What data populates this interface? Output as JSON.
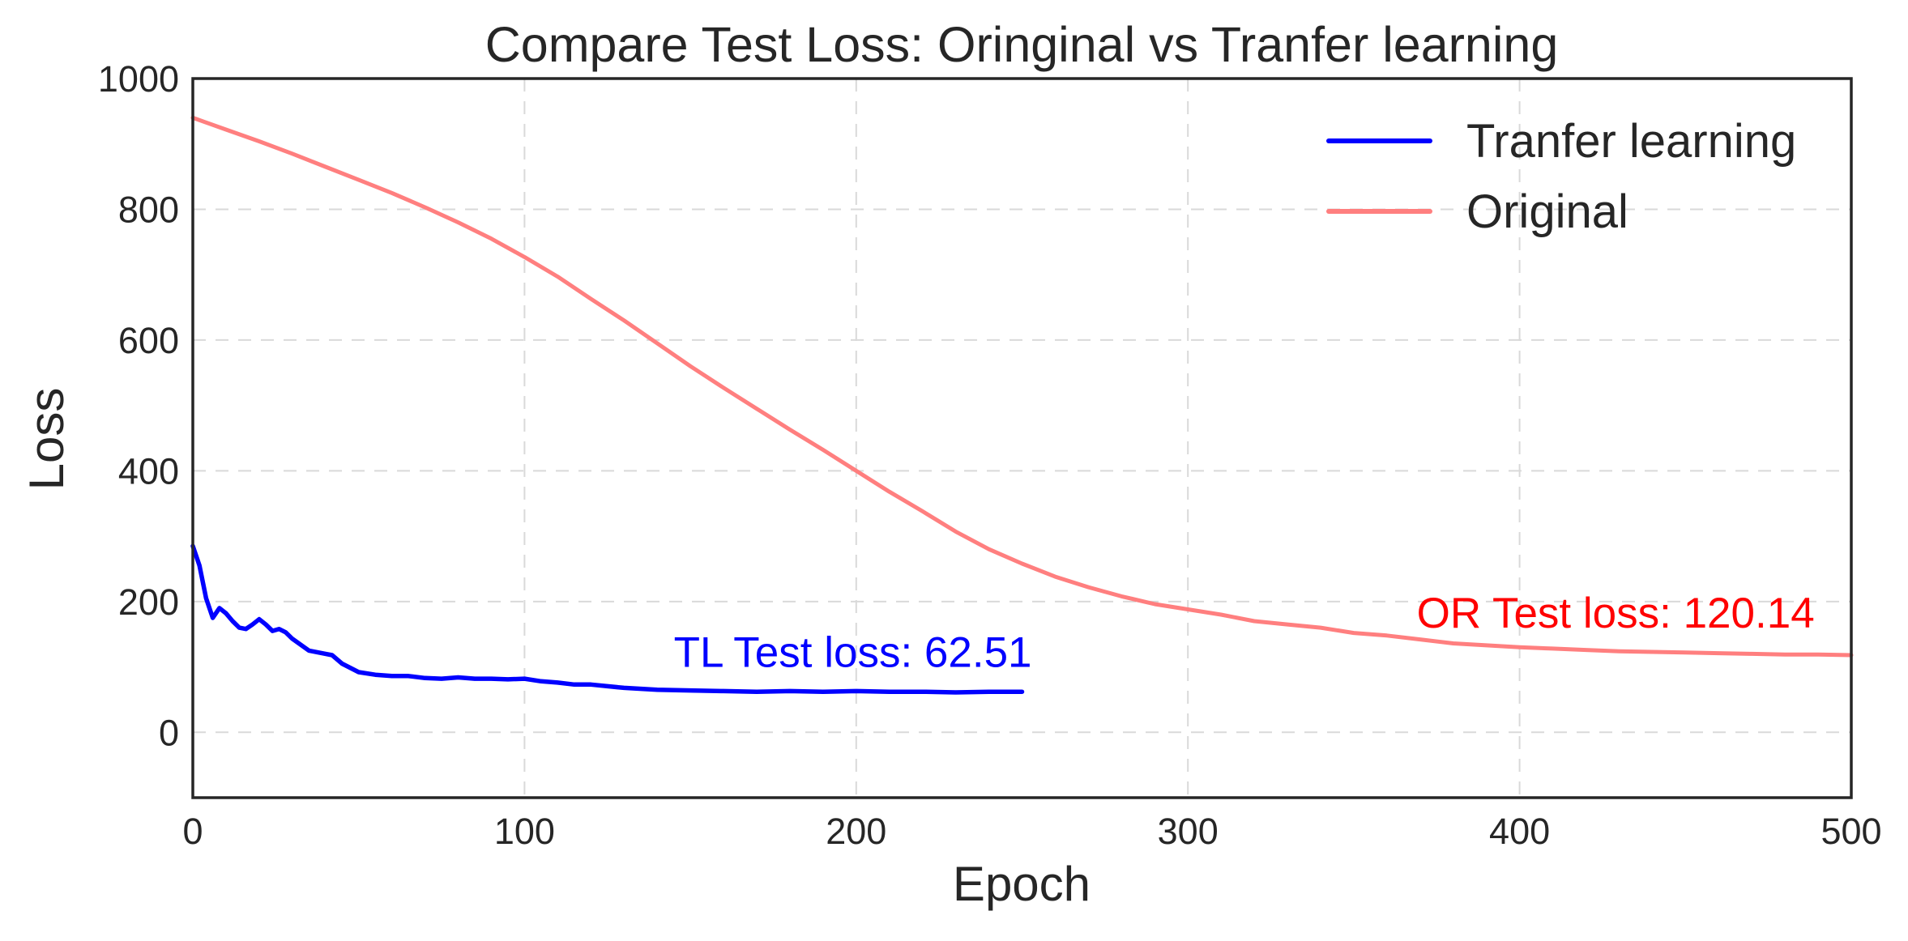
{
  "chart_data": {
    "type": "line",
    "title": "Compare Test Loss: Oringinal vs Tranfer learning",
    "xlabel": "Epoch",
    "ylabel": "Loss",
    "xlim": [
      0,
      500
    ],
    "ylim": [
      -100,
      1000
    ],
    "x_ticks": [
      "0",
      "100",
      "200",
      "300",
      "400",
      "500"
    ],
    "y_ticks": [
      "0",
      "200",
      "400",
      "600",
      "800",
      "1000"
    ],
    "grid": true,
    "grid_style": "dashed",
    "legend_position": "top-right",
    "series": [
      {
        "name": "Tranfer learning",
        "color": "#0000ff",
        "x": [
          0,
          2,
          4,
          6,
          8,
          10,
          12,
          14,
          16,
          18,
          20,
          22,
          24,
          26,
          28,
          30,
          35,
          40,
          42,
          45,
          50,
          55,
          60,
          65,
          70,
          75,
          80,
          85,
          90,
          95,
          100,
          105,
          110,
          115,
          120,
          130,
          140,
          150,
          160,
          170,
          180,
          190,
          200,
          210,
          220,
          230,
          240,
          250
        ],
        "y": [
          285,
          255,
          205,
          175,
          190,
          182,
          170,
          160,
          158,
          165,
          173,
          165,
          155,
          158,
          153,
          143,
          125,
          120,
          118,
          105,
          92,
          88,
          86,
          86,
          83,
          82,
          84,
          82,
          82,
          81,
          82,
          78,
          76,
          73,
          73,
          68,
          65,
          64,
          63,
          62,
          63,
          62,
          63,
          62,
          62,
          61,
          62,
          62
        ]
      },
      {
        "name": "Original",
        "color": "#ff7f7f",
        "x": [
          0,
          10,
          20,
          30,
          40,
          50,
          60,
          70,
          80,
          90,
          100,
          110,
          120,
          130,
          140,
          150,
          160,
          170,
          180,
          190,
          200,
          210,
          220,
          230,
          240,
          250,
          260,
          270,
          280,
          290,
          300,
          310,
          320,
          330,
          340,
          350,
          360,
          370,
          380,
          390,
          400,
          410,
          420,
          430,
          440,
          450,
          460,
          470,
          480,
          490,
          500
        ],
        "y": [
          940,
          922,
          904,
          885,
          865,
          845,
          825,
          803,
          780,
          755,
          727,
          697,
          663,
          630,
          595,
          560,
          527,
          495,
          463,
          432,
          400,
          368,
          338,
          307,
          280,
          258,
          238,
          222,
          208,
          196,
          188,
          180,
          170,
          165,
          160,
          152,
          148,
          142,
          136,
          133,
          130,
          128,
          126,
          124,
          123,
          122,
          121,
          120,
          119,
          119,
          118
        ]
      }
    ],
    "annotations": [
      {
        "text": "TL Test loss: 62.51",
        "x": 145,
        "y": 100,
        "color": "#0000ff"
      },
      {
        "text": "OR Test loss: 120.14",
        "x": 369,
        "y": 160,
        "color": "#ff0000"
      }
    ]
  }
}
